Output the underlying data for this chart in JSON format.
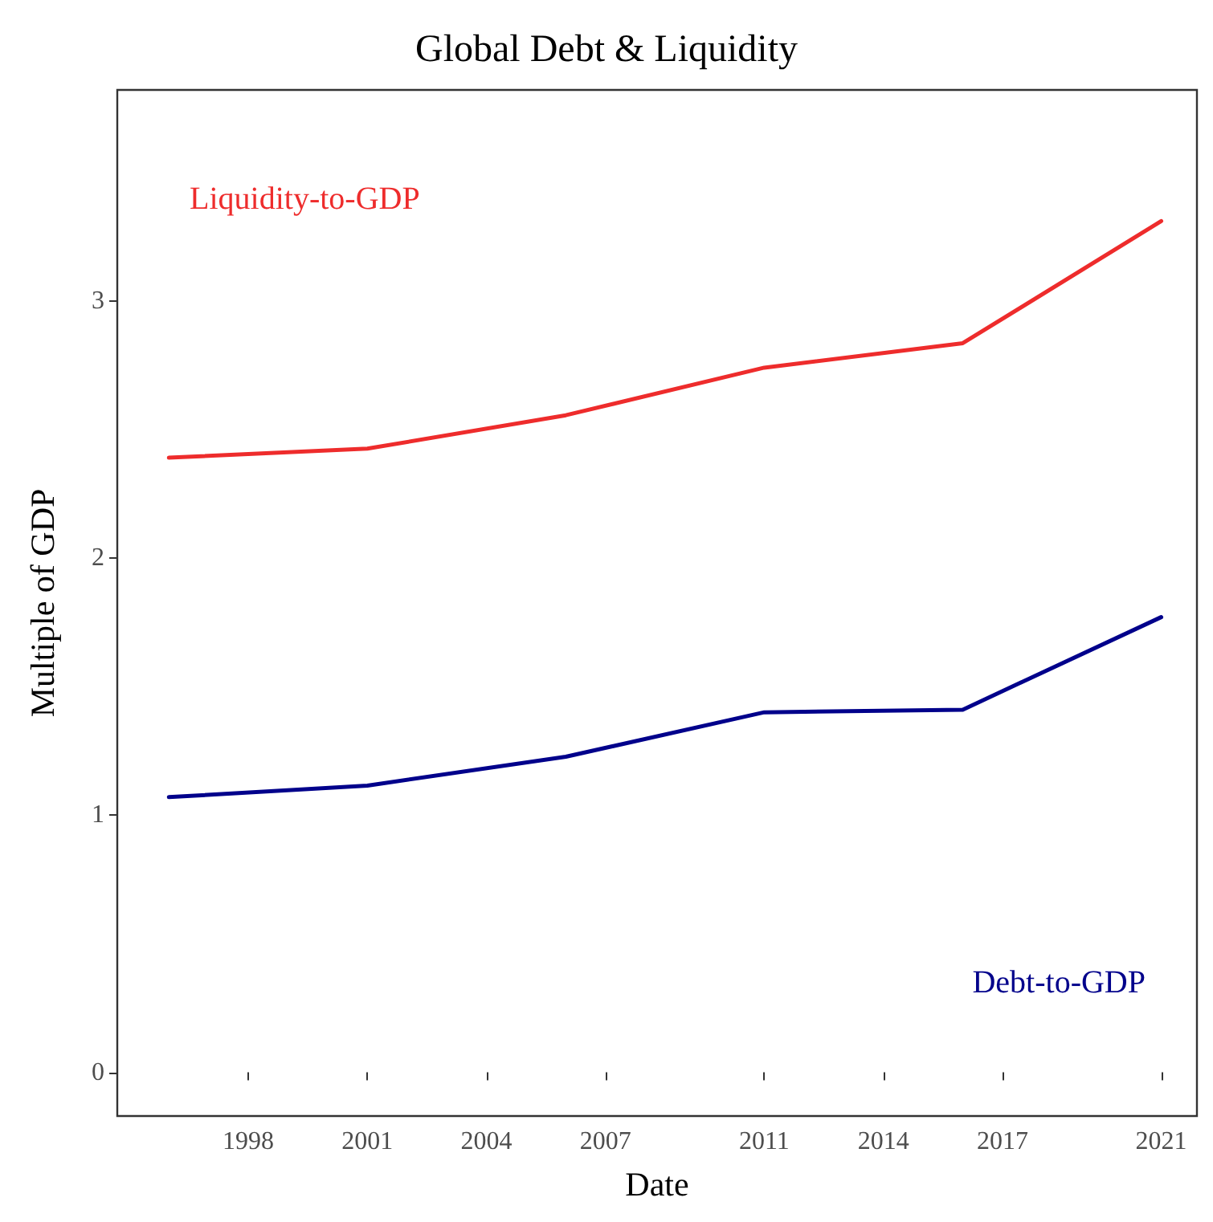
{
  "chart_data": {
    "type": "line",
    "title": "Global Debt & Liquidity",
    "xlabel": "Date",
    "ylabel": "Multiple of GDP",
    "x": [
      1996,
      2001,
      2006,
      2011,
      2016,
      2021
    ],
    "series": [
      {
        "name": "Liquidity-to-GDP",
        "color": "#ee2c2c",
        "values": [
          2.39,
          2.425,
          2.555,
          2.74,
          2.835,
          3.31
        ]
      },
      {
        "name": "Debt-to-GDP",
        "color": "#00008b",
        "values": [
          1.07,
          1.115,
          1.227,
          1.4,
          1.41,
          1.77
        ]
      }
    ],
    "xlim": [
      1994.7,
      2021.9
    ],
    "xticks": [
      1998,
      2001,
      2004,
      2007,
      2011,
      2014,
      2017,
      2021
    ],
    "ylim": [
      -0.17,
      3.82
    ],
    "yticks": [
      0,
      1,
      2,
      3
    ],
    "grid": false,
    "marker": "none",
    "line_style": "solid"
  }
}
